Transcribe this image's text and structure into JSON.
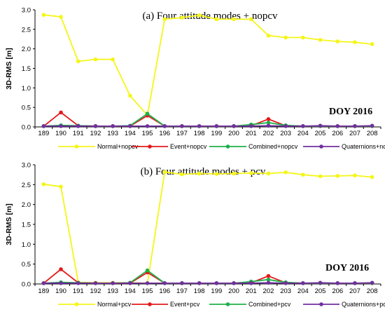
{
  "chart_data": [
    {
      "type": "line",
      "title": "(a) Four attitude modes + nopcv",
      "annotation": "DOY 2016",
      "ylabel": "3D-RMS [m]",
      "xlabel": "",
      "ylim": [
        0,
        3.0
      ],
      "yticks": [
        "0.0",
        "0.5",
        "1.0",
        "1.5",
        "2.0",
        "2.5",
        "3.0"
      ],
      "grid": false,
      "legend": "bottom",
      "categories": [
        "189",
        "190",
        "191",
        "192",
        "193",
        "194",
        "195",
        "196",
        "197",
        "198",
        "199",
        "200",
        "201",
        "202",
        "203",
        "204",
        "205",
        "206",
        "207",
        "208"
      ],
      "series": [
        {
          "name": "Normal+nopcv",
          "color": "#f5f519",
          "values": [
            2.87,
            2.82,
            1.68,
            1.73,
            1.73,
            0.8,
            0.3,
            2.76,
            2.8,
            2.86,
            2.76,
            2.76,
            2.76,
            2.34,
            2.29,
            2.29,
            2.23,
            2.19,
            2.17,
            2.12
          ]
        },
        {
          "name": "Event+nopcv",
          "color": "#e31a1c",
          "values": [
            0.02,
            0.37,
            0.03,
            0.02,
            0.02,
            0.02,
            0.29,
            0.02,
            0.02,
            0.02,
            0.02,
            0.02,
            0.03,
            0.2,
            0.03,
            0.02,
            0.02,
            0.02,
            0.02,
            0.02
          ]
        },
        {
          "name": "Combined+nopcv",
          "color": "#20b04a",
          "values": [
            0.02,
            0.04,
            0.03,
            0.02,
            0.02,
            0.03,
            0.34,
            0.02,
            0.02,
            0.02,
            0.02,
            0.02,
            0.06,
            0.11,
            0.04,
            0.02,
            0.02,
            0.02,
            0.02,
            0.02
          ]
        },
        {
          "name": "Quaternions+nopcv",
          "color": "#7030a0",
          "values": [
            0.02,
            0.02,
            0.02,
            0.02,
            0.02,
            0.02,
            0.02,
            0.02,
            0.02,
            0.02,
            0.02,
            0.02,
            0.02,
            0.03,
            0.02,
            0.02,
            0.03,
            0.02,
            0.02,
            0.03
          ]
        }
      ]
    },
    {
      "type": "line",
      "title": "(b) Four attitude modes + pcv",
      "annotation": "DOY 2016",
      "ylabel": "3D-RMS [m]",
      "xlabel": "",
      "ylim": [
        0,
        3.0
      ],
      "yticks": [
        "0.0",
        "0.5",
        "1.0",
        "1.5",
        "2.0",
        "2.5",
        "3.0"
      ],
      "grid": false,
      "legend": "bottom",
      "categories": [
        "189",
        "190",
        "191",
        "192",
        "193",
        "194",
        "195",
        "196",
        "197",
        "198",
        "199",
        "200",
        "201",
        "202",
        "203",
        "204",
        "205",
        "206",
        "207",
        "208"
      ],
      "series": [
        {
          "name": "Normal+pcv",
          "color": "#f5f519",
          "values": [
            2.51,
            2.45,
            0.04,
            0.03,
            0.03,
            0.03,
            0.02,
            2.82,
            2.76,
            2.78,
            2.77,
            2.78,
            2.79,
            2.78,
            2.81,
            2.75,
            2.71,
            2.72,
            2.73,
            2.69
          ]
        },
        {
          "name": "Event+pcv",
          "color": "#e31a1c",
          "values": [
            0.02,
            0.37,
            0.03,
            0.02,
            0.02,
            0.02,
            0.29,
            0.02,
            0.02,
            0.02,
            0.02,
            0.02,
            0.03,
            0.2,
            0.03,
            0.02,
            0.02,
            0.02,
            0.02,
            0.02
          ]
        },
        {
          "name": "Combined+pcv",
          "color": "#20b04a",
          "values": [
            0.02,
            0.04,
            0.03,
            0.02,
            0.02,
            0.03,
            0.34,
            0.02,
            0.02,
            0.02,
            0.02,
            0.02,
            0.06,
            0.11,
            0.04,
            0.02,
            0.02,
            0.02,
            0.02,
            0.02
          ]
        },
        {
          "name": "Quaternions+pcv",
          "color": "#7030a0",
          "values": [
            0.02,
            0.02,
            0.02,
            0.02,
            0.02,
            0.02,
            0.02,
            0.02,
            0.02,
            0.02,
            0.02,
            0.02,
            0.02,
            0.03,
            0.02,
            0.02,
            0.03,
            0.02,
            0.02,
            0.03
          ]
        }
      ]
    }
  ]
}
